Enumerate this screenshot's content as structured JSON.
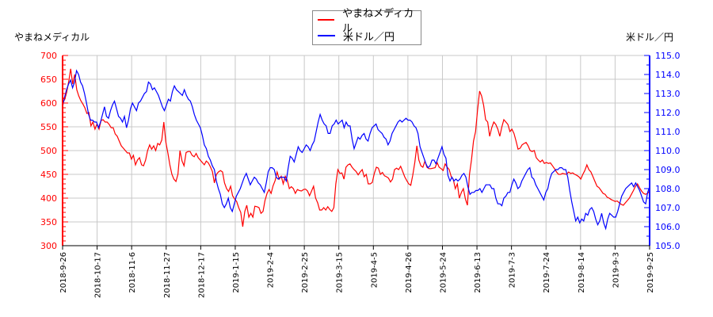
{
  "chart_data": {
    "type": "line",
    "title": "",
    "left_axis_title": "やまねメディカル",
    "right_axis_title": "米ドル／円",
    "legend": [
      {
        "name": "やまねメディカル",
        "color": "#ff0000"
      },
      {
        "name": "米ドル／円",
        "color": "#0000ff"
      }
    ],
    "left_axis": {
      "min": 300,
      "max": 700,
      "ticks": [
        300,
        350,
        400,
        450,
        500,
        550,
        600,
        650,
        700
      ],
      "color": "#ff0000"
    },
    "right_axis": {
      "min": 105.0,
      "max": 115.0,
      "ticks": [
        "105.0",
        "106.0",
        "107.0",
        "108.0",
        "109.0",
        "110.0",
        "111.0",
        "112.0",
        "113.0",
        "114.0",
        "115.0"
      ],
      "color": "#0000ff"
    },
    "x_tick_labels": [
      "2018-9-26",
      "2018-10-17",
      "2018-11-6",
      "2018-11-27",
      "2018-12-17",
      "2019-1-15",
      "2019-2-4",
      "2019-2-25",
      "2019-3-15",
      "2019-4-5",
      "2019-4-26",
      "2019-5-24",
      "2019-6-13",
      "2019-7-3",
      "2019-7-24",
      "2019-8-14",
      "2019-9-3",
      "2019-9-25"
    ],
    "grid": true,
    "series": [
      {
        "name": "やまねメディカル",
        "axis": "left",
        "color": "#ff0000",
        "values": [
          613,
          607,
          622,
          645,
          672,
          640,
          660,
          628,
          615,
          605,
          598,
          590,
          578,
          580,
          552,
          560,
          545,
          556,
          545,
          563,
          565,
          560,
          560,
          555,
          548,
          548,
          535,
          530,
          520,
          510,
          505,
          500,
          495,
          495,
          482,
          490,
          470,
          480,
          485,
          470,
          468,
          480,
          500,
          512,
          503,
          510,
          500,
          515,
          512,
          522,
          560,
          518,
          495,
          470,
          450,
          440,
          435,
          450,
          500,
          478,
          468,
          496,
          498,
          498,
          490,
          487,
          494,
          485,
          480,
          475,
          470,
          478,
          474,
          466,
          456,
          432,
          450,
          455,
          458,
          455,
          432,
          420,
          414,
          425,
          405,
          398,
          393,
          380,
          370,
          340,
          372,
          385,
          360,
          368,
          360,
          383,
          382,
          380,
          368,
          372,
          395,
          410,
          418,
          410,
          426,
          437,
          455,
          440,
          446,
          430,
          446,
          438,
          420,
          424,
          420,
          410,
          418,
          416,
          415,
          418,
          419,
          415,
          405,
          415,
          425,
          400,
          390,
          375,
          375,
          380,
          375,
          382,
          376,
          372,
          380,
          430,
          460,
          452,
          453,
          440,
          465,
          470,
          472,
          465,
          460,
          456,
          449,
          455,
          460,
          445,
          450,
          430,
          430,
          433,
          452,
          465,
          463,
          450,
          454,
          447,
          445,
          442,
          434,
          440,
          460,
          463,
          460,
          467,
          456,
          445,
          437,
          430,
          427,
          448,
          475,
          510,
          480,
          468,
          465,
          478,
          465,
          462,
          462,
          463,
          464,
          475,
          465,
          462,
          458,
          472,
          465,
          460,
          445,
          440,
          420,
          430,
          400,
          412,
          420,
          398,
          385,
          450,
          480,
          520,
          540,
          585,
          625,
          615,
          595,
          565,
          560,
          530,
          548,
          560,
          555,
          545,
          530,
          550,
          565,
          560,
          555,
          540,
          545,
          536,
          520,
          503,
          505,
          512,
          515,
          517,
          510,
          500,
          498,
          500,
          485,
          480,
          476,
          480,
          473,
          475,
          473,
          474,
          468,
          462,
          455,
          450,
          450,
          452,
          451,
          450,
          455,
          452,
          453,
          450,
          448,
          445,
          440,
          450,
          458,
          470,
          460,
          455,
          445,
          435,
          425,
          422,
          416,
          410,
          408,
          402,
          400,
          397,
          395,
          393,
          394,
          390,
          387,
          385,
          390,
          395,
          400,
          408,
          416,
          425,
          430,
          422,
          415,
          410,
          408,
          410,
          415
        ]
      },
      {
        "name": "米ドル／円",
        "axis": "right",
        "color": "#0000ff",
        "values": [
          112.3,
          112.8,
          113.2,
          113.5,
          113.7,
          113.3,
          113.6,
          114.2,
          114.0,
          113.6,
          113.4,
          113.0,
          112.5,
          111.9,
          111.6,
          111.6,
          111.5,
          111.5,
          111.2,
          111.5,
          111.9,
          112.3,
          111.8,
          111.7,
          112.1,
          112.4,
          112.6,
          112.2,
          111.8,
          111.7,
          111.5,
          111.8,
          111.2,
          111.6,
          112.2,
          112.5,
          112.3,
          112.1,
          112.5,
          112.6,
          112.8,
          113.0,
          113.1,
          113.6,
          113.5,
          113.2,
          113.3,
          113.1,
          112.9,
          112.6,
          112.3,
          112.1,
          112.4,
          112.7,
          112.6,
          113.1,
          113.4,
          113.2,
          113.1,
          113.0,
          112.9,
          113.2,
          112.9,
          112.7,
          112.6,
          112.3,
          111.9,
          111.6,
          111.4,
          111.2,
          110.8,
          110.3,
          110.1,
          109.7,
          109.5,
          109.2,
          109.0,
          108.4,
          108.0,
          107.7,
          107.2,
          107.0,
          107.2,
          107.5,
          107.0,
          106.8,
          107.2,
          107.6,
          107.8,
          108.0,
          108.3,
          108.6,
          108.8,
          108.5,
          108.2,
          108.4,
          108.6,
          108.5,
          108.3,
          108.2,
          108.0,
          107.8,
          108.3,
          108.9,
          109.1,
          109.1,
          109.0,
          108.6,
          108.5,
          108.6,
          108.6,
          108.6,
          108.4,
          109.1,
          109.7,
          109.6,
          109.4,
          109.8,
          110.2,
          110.0,
          109.9,
          110.1,
          110.3,
          110.2,
          110.0,
          110.3,
          110.5,
          111.0,
          111.5,
          111.9,
          111.6,
          111.4,
          111.3,
          110.9,
          110.9,
          111.3,
          111.4,
          111.6,
          111.4,
          111.5,
          111.6,
          111.2,
          111.5,
          111.3,
          111.3,
          110.6,
          110.1,
          110.4,
          110.7,
          110.6,
          110.8,
          110.9,
          110.6,
          110.5,
          110.9,
          111.2,
          111.3,
          111.4,
          111.1,
          111.0,
          110.9,
          110.7,
          110.6,
          110.3,
          110.5,
          110.9,
          111.1,
          111.3,
          111.5,
          111.6,
          111.5,
          111.6,
          111.7,
          111.6,
          111.6,
          111.5,
          111.3,
          111.2,
          110.9,
          110.2,
          109.9,
          109.6,
          109.3,
          109.1,
          109.2,
          109.5,
          109.5,
          109.3,
          109.6,
          109.9,
          110.2,
          109.8,
          109.6,
          108.7,
          108.4,
          108.6,
          108.4,
          108.5,
          108.4,
          108.5,
          108.7,
          108.8,
          108.6,
          108.1,
          107.7,
          107.8,
          107.8,
          107.9,
          107.9,
          108.0,
          107.8,
          108.0,
          108.2,
          108.2,
          108.2,
          108.0,
          108.0,
          107.5,
          107.2,
          107.2,
          107.1,
          107.5,
          107.6,
          107.8,
          107.8,
          108.2,
          108.5,
          108.3,
          108.0,
          108.1,
          108.4,
          108.6,
          108.8,
          109.0,
          109.1,
          108.6,
          108.5,
          108.2,
          108.0,
          107.8,
          107.6,
          107.4,
          107.8,
          108.0,
          108.5,
          108.8,
          108.9,
          109.0,
          109.0,
          109.1,
          109.1,
          109.0,
          109.0,
          108.6,
          107.9,
          107.3,
          106.8,
          106.3,
          106.5,
          106.2,
          106.4,
          106.3,
          106.7,
          106.6,
          106.9,
          107.0,
          106.8,
          106.4,
          106.1,
          106.3,
          106.7,
          106.2,
          105.9,
          106.4,
          106.7,
          106.6,
          106.5,
          106.5,
          106.8,
          107.2,
          107.6,
          107.8,
          108.0,
          108.1,
          108.2,
          108.3,
          108.1,
          108.3,
          108.1,
          107.9,
          107.6,
          107.3,
          107.2,
          107.8,
          108.1
        ]
      }
    ]
  }
}
